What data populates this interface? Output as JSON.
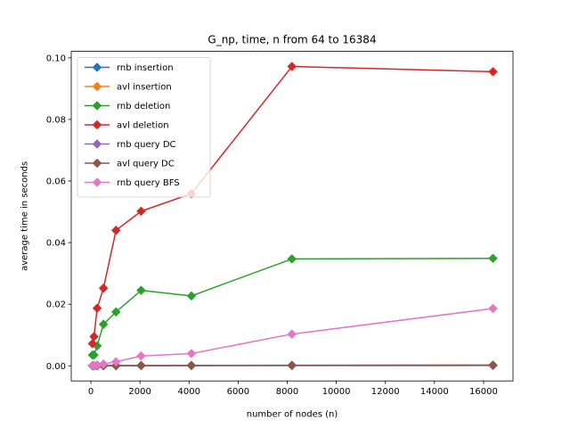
{
  "chart_data": {
    "type": "line",
    "title": "G_np, time, n from 64 to 16384",
    "xlabel": "number of nodes (n)",
    "ylabel": "average time in seconds",
    "xlim": [
      -800,
      17200
    ],
    "ylim": [
      -0.0049,
      0.1021
    ],
    "xticks": [
      0,
      2000,
      4000,
      6000,
      8000,
      10000,
      12000,
      14000,
      16000
    ],
    "yticks": [
      0.0,
      0.02,
      0.04,
      0.06,
      0.08,
      0.1
    ],
    "ytick_labels": [
      "0.00",
      "0.02",
      "0.04",
      "0.06",
      "0.08",
      "0.10"
    ],
    "x": [
      64,
      128,
      256,
      512,
      1024,
      2048,
      4096,
      8192,
      16384
    ],
    "grid": false,
    "legend_position": "upper left",
    "series": [
      {
        "name": "rnb insertion",
        "color": "#1f77b4",
        "values": [
          5e-05,
          6e-05,
          7e-05,
          8e-05,
          0.0001,
          0.00012,
          0.00014,
          0.00018,
          0.00025
        ]
      },
      {
        "name": "avl insertion",
        "color": "#ff7f0e",
        "values": [
          4e-05,
          5e-05,
          6e-05,
          7e-05,
          9e-05,
          0.00011,
          0.00013,
          0.00017,
          0.00023
        ]
      },
      {
        "name": "rnb deletion",
        "color": "#2ca02c",
        "values": [
          0.0035,
          0.0035,
          0.0065,
          0.0135,
          0.0175,
          0.0245,
          0.0227,
          0.0347,
          0.0349
        ]
      },
      {
        "name": "avl deletion",
        "color": "#d62728",
        "values": [
          0.0072,
          0.0095,
          0.0187,
          0.0252,
          0.044,
          0.0502,
          0.0559,
          0.0972,
          0.0955
        ]
      },
      {
        "name": "rnb query DC",
        "color": "#9467bd",
        "values": [
          2e-05,
          2e-05,
          3e-05,
          3e-05,
          4e-05,
          5e-05,
          6e-05,
          8e-05,
          0.0001
        ]
      },
      {
        "name": "avl query DC",
        "color": "#8c564b",
        "values": [
          3e-05,
          3e-05,
          4e-05,
          5e-05,
          6e-05,
          8e-05,
          0.0001,
          0.00015,
          0.0002
        ]
      },
      {
        "name": "rnb query BFS",
        "color": "#e377c2",
        "values": [
          0.00015,
          0.0002,
          0.0003,
          0.0006,
          0.0013,
          0.0032,
          0.004,
          0.0103,
          0.0186
        ]
      }
    ]
  }
}
